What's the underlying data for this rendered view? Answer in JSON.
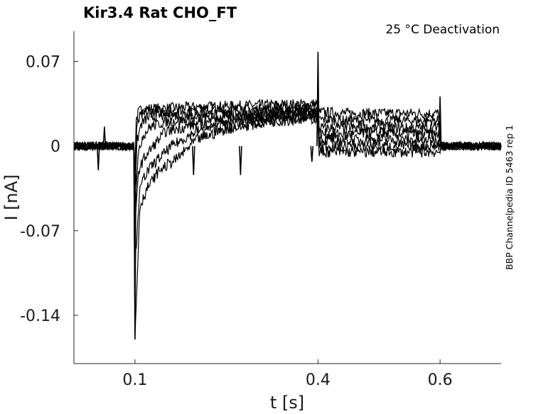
{
  "chart_data": {
    "type": "line",
    "title": "Kir3.4  Rat  CHO_FT",
    "condition": "25 °C  Deactivation",
    "side_note": "BBP Channelpedia ID 5463 rep 1",
    "xlabel": "t [s]",
    "ylabel": "I [nA]",
    "xlim": [
      0.0,
      0.7
    ],
    "ylim": [
      -0.18,
      0.095
    ],
    "x_ticks": [
      0.1,
      0.4,
      0.6
    ],
    "x_tick_labels": [
      "0.1",
      "0.4",
      "0.6"
    ],
    "y_ticks": [
      0.07,
      0,
      -0.07,
      -0.14
    ],
    "y_tick_labels": [
      "0.07",
      "0",
      "-0.07",
      "-0.14"
    ],
    "grid": false,
    "line_color": "#000000",
    "series": [
      {
        "x": [
          0.0,
          0.098,
          0.1,
          0.102,
          0.106,
          0.11,
          0.12,
          0.14,
          0.18,
          0.25,
          0.32,
          0.399,
          0.402,
          0.41,
          0.45,
          0.5,
          0.598,
          0.602,
          0.65,
          0.7
        ],
        "y": [
          0.0,
          0.0,
          -0.015,
          0.022,
          0.028,
          0.03,
          0.031,
          0.031,
          0.032,
          0.033,
          0.034,
          0.035,
          0.028,
          0.028,
          0.027,
          0.027,
          0.027,
          0.0,
          0.0,
          0.0
        ]
      },
      {
        "x": [
          0.0,
          0.098,
          0.1,
          0.103,
          0.108,
          0.115,
          0.13,
          0.18,
          0.25,
          0.32,
          0.399,
          0.402,
          0.41,
          0.45,
          0.5,
          0.598,
          0.602,
          0.65,
          0.7
        ],
        "y": [
          0.0,
          0.0,
          -0.02,
          0.015,
          0.024,
          0.027,
          0.028,
          0.029,
          0.03,
          0.031,
          0.032,
          0.022,
          0.022,
          0.021,
          0.021,
          0.021,
          0.0,
          0.0,
          0.0
        ]
      },
      {
        "x": [
          0.0,
          0.098,
          0.1,
          0.104,
          0.11,
          0.12,
          0.14,
          0.18,
          0.25,
          0.32,
          0.399,
          0.402,
          0.41,
          0.45,
          0.5,
          0.598,
          0.602,
          0.65,
          0.7
        ],
        "y": [
          0.0,
          0.0,
          -0.03,
          0.005,
          0.018,
          0.023,
          0.025,
          0.026,
          0.027,
          0.028,
          0.03,
          0.015,
          0.015,
          0.015,
          0.015,
          0.015,
          0.0,
          0.0,
          0.0
        ]
      },
      {
        "x": [
          0.0,
          0.098,
          0.1,
          0.105,
          0.112,
          0.125,
          0.15,
          0.19,
          0.25,
          0.32,
          0.399,
          0.402,
          0.41,
          0.45,
          0.5,
          0.598,
          0.602,
          0.65,
          0.7
        ],
        "y": [
          0.0,
          0.0,
          -0.045,
          -0.01,
          0.008,
          0.016,
          0.02,
          0.022,
          0.024,
          0.026,
          0.028,
          0.01,
          0.01,
          0.01,
          0.01,
          0.01,
          0.0,
          0.0,
          0.0
        ]
      },
      {
        "x": [
          0.0,
          0.098,
          0.1,
          0.106,
          0.115,
          0.13,
          0.15,
          0.2,
          0.25,
          0.32,
          0.399,
          0.402,
          0.41,
          0.45,
          0.5,
          0.598,
          0.602,
          0.65,
          0.7
        ],
        "y": [
          0.0,
          0.0,
          -0.07,
          -0.02,
          -0.01,
          0.0,
          0.012,
          0.018,
          0.021,
          0.024,
          0.027,
          0.005,
          0.005,
          0.005,
          0.005,
          0.005,
          0.0,
          0.0,
          0.0
        ]
      },
      {
        "x": [
          0.0,
          0.098,
          0.1,
          0.107,
          0.115,
          0.13,
          0.16,
          0.2,
          0.25,
          0.32,
          0.399,
          0.402,
          0.41,
          0.45,
          0.5,
          0.598,
          0.602,
          0.65,
          0.7
        ],
        "y": [
          0.0,
          0.0,
          -0.1,
          -0.04,
          -0.025,
          -0.015,
          0.0,
          0.012,
          0.018,
          0.022,
          0.025,
          0.0,
          0.0,
          0.0,
          0.0,
          0.0,
          0.0,
          0.0,
          0.0
        ]
      },
      {
        "x": [
          0.0,
          0.098,
          0.1,
          0.108,
          0.12,
          0.14,
          0.17,
          0.2,
          0.25,
          0.32,
          0.399,
          0.402,
          0.41,
          0.45,
          0.5,
          0.598,
          0.602,
          0.65,
          0.7
        ],
        "y": [
          0.0,
          0.0,
          -0.16,
          -0.05,
          -0.035,
          -0.02,
          -0.01,
          0.005,
          0.014,
          0.02,
          0.023,
          -0.005,
          -0.005,
          -0.005,
          -0.005,
          -0.005,
          0.0,
          0.0,
          0.0
        ]
      }
    ],
    "transients": [
      {
        "x": 0.05,
        "y": 0.016
      },
      {
        "x": 0.04,
        "y": -0.02
      },
      {
        "x": 0.1,
        "y": -0.16
      },
      {
        "x": 0.196,
        "y": -0.024
      },
      {
        "x": 0.273,
        "y": -0.024
      },
      {
        "x": 0.39,
        "y": -0.013
      },
      {
        "x": 0.4,
        "y": 0.078
      },
      {
        "x": 0.6,
        "y": 0.041
      }
    ]
  }
}
